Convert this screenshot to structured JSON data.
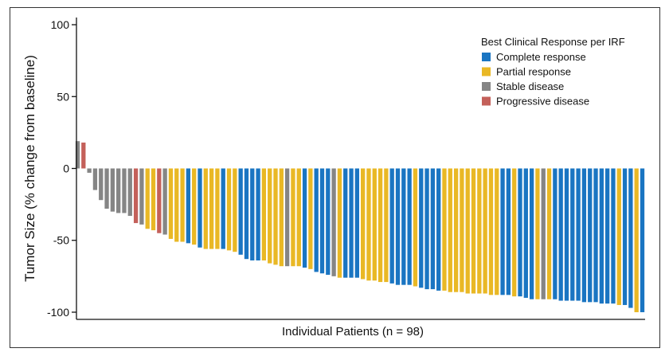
{
  "chart_data": {
    "type": "bar",
    "title": "",
    "ylabel": "Tumor Size (% change from baseline)",
    "xlabel": "Individual Patients (n = 98)",
    "ylim": [
      -105,
      105
    ],
    "yticks": [
      100,
      50,
      0,
      -50,
      -100
    ],
    "grid": false,
    "legend": {
      "title": "Best Clinical Response per IRF",
      "placement": "top-right",
      "entries": [
        {
          "key": "CR",
          "label": "Complete response",
          "color": "#1a75c2"
        },
        {
          "key": "PR",
          "label": "Partial response",
          "color": "#e9b825"
        },
        {
          "key": "SD",
          "label": "Stable disease",
          "color": "#858585"
        },
        {
          "key": "PD",
          "label": "Progressive disease",
          "color": "#c4605a"
        }
      ]
    },
    "series": [
      {
        "response": [
          "SD",
          "PD",
          "SD",
          "SD",
          "SD",
          "SD",
          "SD",
          "SD",
          "SD",
          "SD",
          "PD",
          "SD",
          "PR",
          "PR",
          "PD",
          "SD",
          "PR",
          "PR",
          "PR",
          "CR",
          "PR",
          "CR",
          "PR",
          "PR",
          "PR",
          "CR",
          "PR",
          "PR",
          "CR",
          "CR",
          "CR",
          "CR",
          "PR",
          "PR",
          "PR",
          "PR",
          "SD",
          "PR",
          "PR",
          "CR",
          "PR",
          "CR",
          "CR",
          "CR",
          "SD",
          "PR",
          "CR",
          "CR",
          "CR",
          "PR",
          "PR",
          "PR",
          "PR",
          "PR",
          "CR",
          "CR",
          "CR",
          "CR",
          "PR",
          "CR",
          "CR",
          "CR",
          "CR",
          "PR",
          "PR",
          "PR",
          "PR",
          "PR",
          "PR",
          "PR",
          "PR",
          "PR",
          "PR",
          "CR",
          "CR",
          "PR",
          "CR",
          "CR",
          "CR",
          "PR",
          "SD",
          "PR",
          "CR",
          "CR",
          "CR",
          "CR",
          "CR",
          "CR",
          "CR",
          "CR",
          "CR",
          "CR",
          "CR",
          "PR",
          "CR",
          "CR",
          "PR",
          "CR"
        ],
        "values": [
          19,
          18,
          -3,
          -15,
          -22,
          -28,
          -30,
          -31,
          -31,
          -33,
          -38,
          -39,
          -42,
          -43,
          -45,
          -46,
          -49,
          -51,
          -51,
          -52,
          -53,
          -55,
          -56,
          -56,
          -56,
          -56,
          -57,
          -58,
          -60,
          -63,
          -64,
          -64,
          -64,
          -66,
          -67,
          -68,
          -68,
          -68,
          -68,
          -69,
          -70,
          -72,
          -73,
          -74,
          -75,
          -76,
          -76,
          -76,
          -76,
          -77,
          -78,
          -78,
          -79,
          -79,
          -80,
          -81,
          -81,
          -81,
          -82,
          -83,
          -84,
          -84,
          -85,
          -85,
          -86,
          -86,
          -86,
          -87,
          -87,
          -87,
          -87,
          -88,
          -88,
          -88,
          -88,
          -89,
          -89,
          -90,
          -91,
          -91,
          -91,
          -91,
          -91,
          -92,
          -92,
          -92,
          -92,
          -93,
          -93,
          -93,
          -94,
          -94,
          -94,
          -95,
          -95,
          -97,
          -100,
          -100
        ]
      }
    ]
  }
}
